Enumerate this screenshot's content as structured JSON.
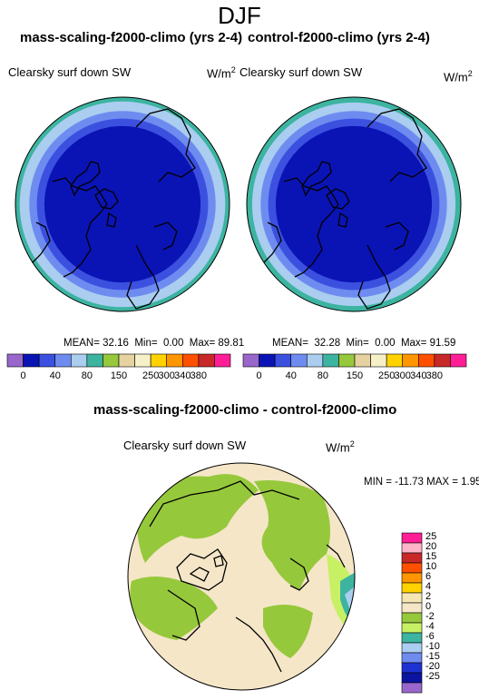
{
  "page": {
    "title": "DJF"
  },
  "panels": [
    {
      "id": "left",
      "title": "mass-scaling-f2000-climo (yrs 2-4)",
      "variable": "Clearsky surf down SW",
      "units": "W/m",
      "units_sup": "2",
      "stats": {
        "mean_label": "MEAN=",
        "mean": "32.16",
        "min_label": "Min=",
        "min": "0.00",
        "max_label": "Max=",
        "max": "89.81"
      }
    },
    {
      "id": "right",
      "title": "control-f2000-climo (yrs 2-4)",
      "variable": "Clearsky surf down SW",
      "units": "W/m",
      "units_sup": "2",
      "stats": {
        "mean_label": "MEAN=",
        "mean": "32.28",
        "min_label": "Min=",
        "min": "0.00",
        "max_label": "Max=",
        "max": "91.59"
      }
    }
  ],
  "diff_panel": {
    "title": "mass-scaling-f2000-climo - control-f2000-climo",
    "variable": "Clearsky surf down SW",
    "units": "W/m",
    "units_sup": "2",
    "minmax": "MIN = -11.73 MAX =   1.95"
  },
  "chart_data": [
    {
      "type": "heatmap",
      "subtype": "polar-stereographic-contour",
      "title": "mass-scaling-f2000-climo (yrs 2-4)",
      "variable": "Clearsky surf down SW",
      "units": "W/m2",
      "stats": {
        "mean": 32.16,
        "min": 0.0,
        "max": 89.81
      },
      "contour_levels": [
        0,
        40,
        60,
        80,
        100,
        150,
        200,
        250,
        300,
        340,
        380
      ],
      "level_tick_labels": [
        "0",
        "40",
        "80",
        "150",
        "250",
        "300",
        "340",
        "380"
      ],
      "level_colors": [
        "#9966cc",
        "#0a14b4",
        "#3c50e0",
        "#6e8cf0",
        "#aacdf0",
        "#3cb4a0",
        "#96c83c",
        "#e6d2a0",
        "#f5f0c8",
        "#ffd200",
        "#ff9600",
        "#ff5000",
        "#c82828",
        "#ff1e96"
      ],
      "rings": [
        {
          "band": "0 to 40",
          "outer_colat_fraction": 0.73
        },
        {
          "band": "40 to 60",
          "outer_colat_fraction": 0.8
        },
        {
          "band": "60 to 80",
          "outer_colat_fraction": 0.87
        },
        {
          "band": "80 to 100",
          "outer_colat_fraction": 0.96
        },
        {
          "band": "100 to 150",
          "outer_colat_fraction": 1.0
        }
      ]
    },
    {
      "type": "heatmap",
      "subtype": "polar-stereographic-contour",
      "title": "control-f2000-climo (yrs 2-4)",
      "variable": "Clearsky surf down SW",
      "units": "W/m2",
      "stats": {
        "mean": 32.28,
        "min": 0.0,
        "max": 91.59
      },
      "contour_levels": [
        0,
        40,
        60,
        80,
        100,
        150,
        200,
        250,
        300,
        340,
        380
      ],
      "level_tick_labels": [
        "0",
        "40",
        "80",
        "150",
        "250",
        "300",
        "340",
        "380"
      ],
      "level_colors": [
        "#9966cc",
        "#0a14b4",
        "#3c50e0",
        "#6e8cf0",
        "#aacdf0",
        "#3cb4a0",
        "#96c83c",
        "#e6d2a0",
        "#f5f0c8",
        "#ffd200",
        "#ff9600",
        "#ff5000",
        "#c82828",
        "#ff1e96"
      ],
      "rings": [
        {
          "band": "0 to 40",
          "outer_colat_fraction": 0.73
        },
        {
          "band": "40 to 60",
          "outer_colat_fraction": 0.8
        },
        {
          "band": "60 to 80",
          "outer_colat_fraction": 0.87
        },
        {
          "band": "80 to 100",
          "outer_colat_fraction": 0.95
        },
        {
          "band": "100 to 150",
          "outer_colat_fraction": 1.0
        }
      ]
    },
    {
      "type": "heatmap",
      "subtype": "polar-stereographic-contour-difference",
      "title": "mass-scaling-f2000-climo - control-f2000-climo",
      "variable": "Clearsky surf down SW",
      "units": "W/m2",
      "stats": {
        "min": -11.73,
        "max": 1.95
      },
      "contour_levels": [
        -25,
        -20,
        -15,
        -10,
        -6,
        -4,
        -2,
        0,
        2,
        4,
        6,
        10,
        15,
        20,
        25
      ],
      "level_tick_labels": [
        "25",
        "20",
        "15",
        "10",
        "6",
        "4",
        "2",
        "0",
        "-2",
        "-4",
        "-6",
        "-10",
        "-15",
        "-20",
        "-25"
      ],
      "level_colors_top_to_bottom": [
        "#ff1e96",
        "#ffb4c8",
        "#c82828",
        "#ff5000",
        "#ff9600",
        "#ffd200",
        "#f5e6b4",
        "#f5e6c8",
        "#96c83c",
        "#c8f064",
        "#3cb4a0",
        "#aacdf0",
        "#6e8cf0",
        "#1e32d2",
        "#0a14a0",
        "#9966cc"
      ],
      "dominant_values": [
        {
          "region": "background / most of domain",
          "band": "0 to 2"
        },
        {
          "region": "Siberia, Canada, Scandinavia, Greenland margin",
          "band": "-2 to 0"
        },
        {
          "region": "eastern edge",
          "band": "-10 to -2"
        }
      ]
    }
  ]
}
